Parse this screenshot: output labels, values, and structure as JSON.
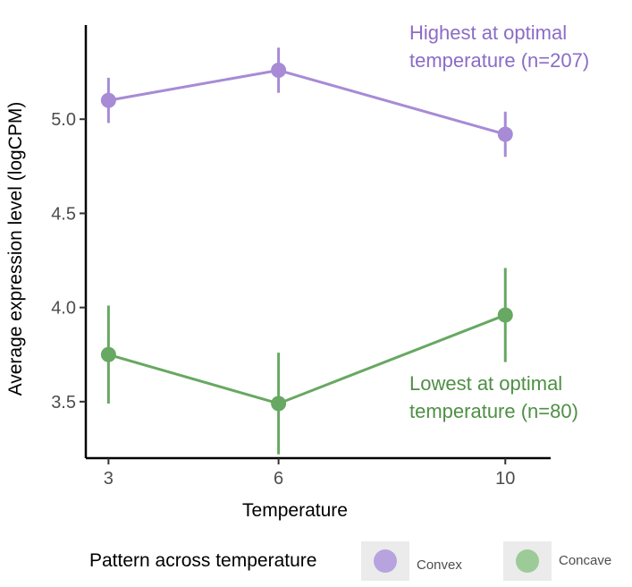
{
  "chart_data": {
    "type": "line",
    "xlabel": "Temperature",
    "ylabel": "Average expression level (logCPM)",
    "x": [
      3,
      6,
      10
    ],
    "xticks": [
      "3",
      "6",
      "10"
    ],
    "yticks": [
      "3.5",
      "4.0",
      "4.5",
      "5.0"
    ],
    "xlim": [
      2.6,
      10.8
    ],
    "ylim": [
      3.2,
      5.5
    ],
    "grid": false,
    "legend_position": "bottom",
    "legend_title": "Pattern across temperature",
    "series": [
      {
        "name": "Convex",
        "color": "#a78bd6",
        "values": [
          5.1,
          5.26,
          4.92
        ],
        "err_low": [
          4.98,
          5.14,
          4.8
        ],
        "err_high": [
          5.22,
          5.38,
          5.04
        ]
      },
      {
        "name": "Concave",
        "color": "#67a862",
        "values": [
          3.75,
          3.49,
          3.96
        ],
        "err_low": [
          3.49,
          3.22,
          3.71
        ],
        "err_high": [
          4.01,
          3.76,
          4.21
        ]
      }
    ],
    "annotations": [
      {
        "lines": [
          "Highest at optimal",
          "temperature (n=207)"
        ],
        "color": "#8b6cc6",
        "series": "Convex"
      },
      {
        "lines": [
          "Lowest at optimal",
          "temperature (n=80)"
        ],
        "color": "#4f8f45",
        "series": "Concave"
      }
    ]
  }
}
